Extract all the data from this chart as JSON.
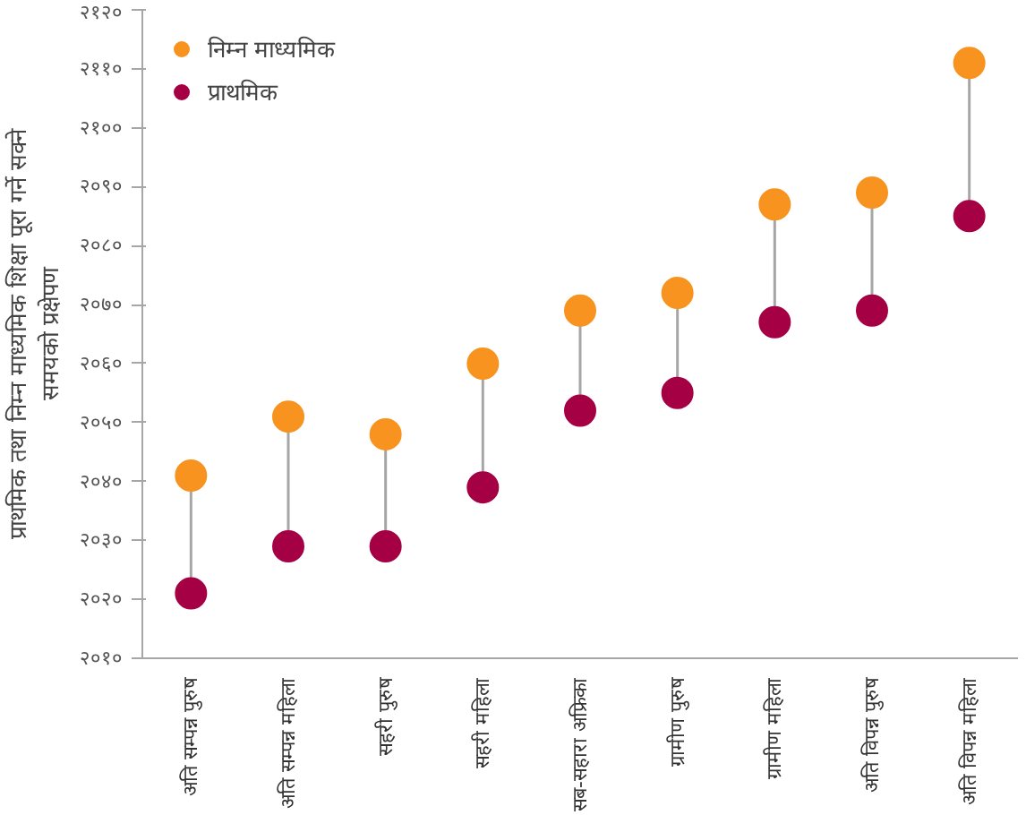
{
  "chart_data": {
    "type": "scatter",
    "ylabel": "प्राथमिक तथा निम्न माध्यमिक शिक्षा पूरा गर्ने सक्ने\nसमयको प्रक्षेपण",
    "categories": [
      "अति सम्पन्न पुरुष",
      "अति सम्पन्न महिला",
      "सहरी पुरुष",
      "सहरी महिला",
      "सब-सहारा अफ्रिका",
      "ग्रामीण पुरुष",
      "ग्रामीण महिला",
      "अति विपन्न पुरुष",
      "अति विपन्न महिला"
    ],
    "series": [
      {
        "name": "निम्न माध्यमिक",
        "color": "#f7931e",
        "values": [
          2041,
          2051,
          2048,
          2060,
          2069,
          2072,
          2087,
          2089,
          2111
        ]
      },
      {
        "name": "प्राथमिक",
        "color": "#a50044",
        "values": [
          2021,
          2029,
          2029,
          2039,
          2052,
          2055,
          2067,
          2069,
          2085
        ]
      }
    ],
    "ylim": [
      2010,
      2120
    ],
    "yticks": [
      {
        "value": 2010,
        "label": "२०१०"
      },
      {
        "value": 2020,
        "label": "२०२०"
      },
      {
        "value": 2030,
        "label": "२०३०"
      },
      {
        "value": 2040,
        "label": "२०४०"
      },
      {
        "value": 2050,
        "label": "२०५०"
      },
      {
        "value": 2060,
        "label": "२०६०"
      },
      {
        "value": 2070,
        "label": "२०७०"
      },
      {
        "value": 2080,
        "label": "२०८०"
      },
      {
        "value": 2090,
        "label": "२०९०"
      },
      {
        "value": 2100,
        "label": "२१००"
      },
      {
        "value": 2110,
        "label": "२११०"
      },
      {
        "value": 2120,
        "label": "२१२०"
      }
    ],
    "grid": false,
    "legend": "top left",
    "marker": "circle"
  }
}
